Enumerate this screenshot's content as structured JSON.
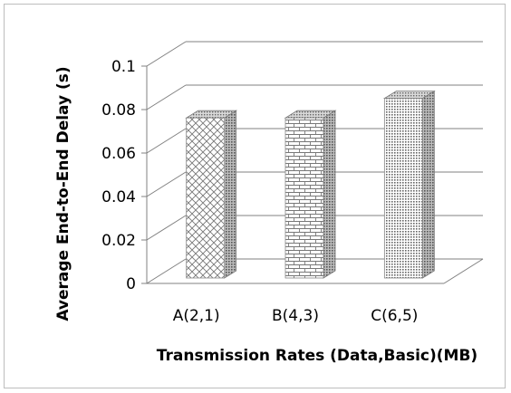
{
  "chart_data": {
    "type": "bar",
    "style": "3d-column",
    "categories": [
      "A(2,1)",
      "B(4,3)",
      "C(6,5)"
    ],
    "values": [
      0.077,
      0.077,
      0.086
    ],
    "xlabel": "Transmission Rates (Data,Basic)(MB)",
    "ylabel": "Average End-to-End Delay (s)",
    "ylim": [
      0,
      0.1
    ],
    "yticks": [
      "0",
      "0.02",
      "0.04",
      "0.06",
      "0.08",
      "0.1"
    ],
    "grid": true,
    "legend": "none",
    "bar_patterns": [
      "crosshatch",
      "brick",
      "dense-dots"
    ],
    "colors": {
      "grid": "#808080",
      "bar_fill": "#ffffff",
      "pattern": "#555555"
    }
  }
}
